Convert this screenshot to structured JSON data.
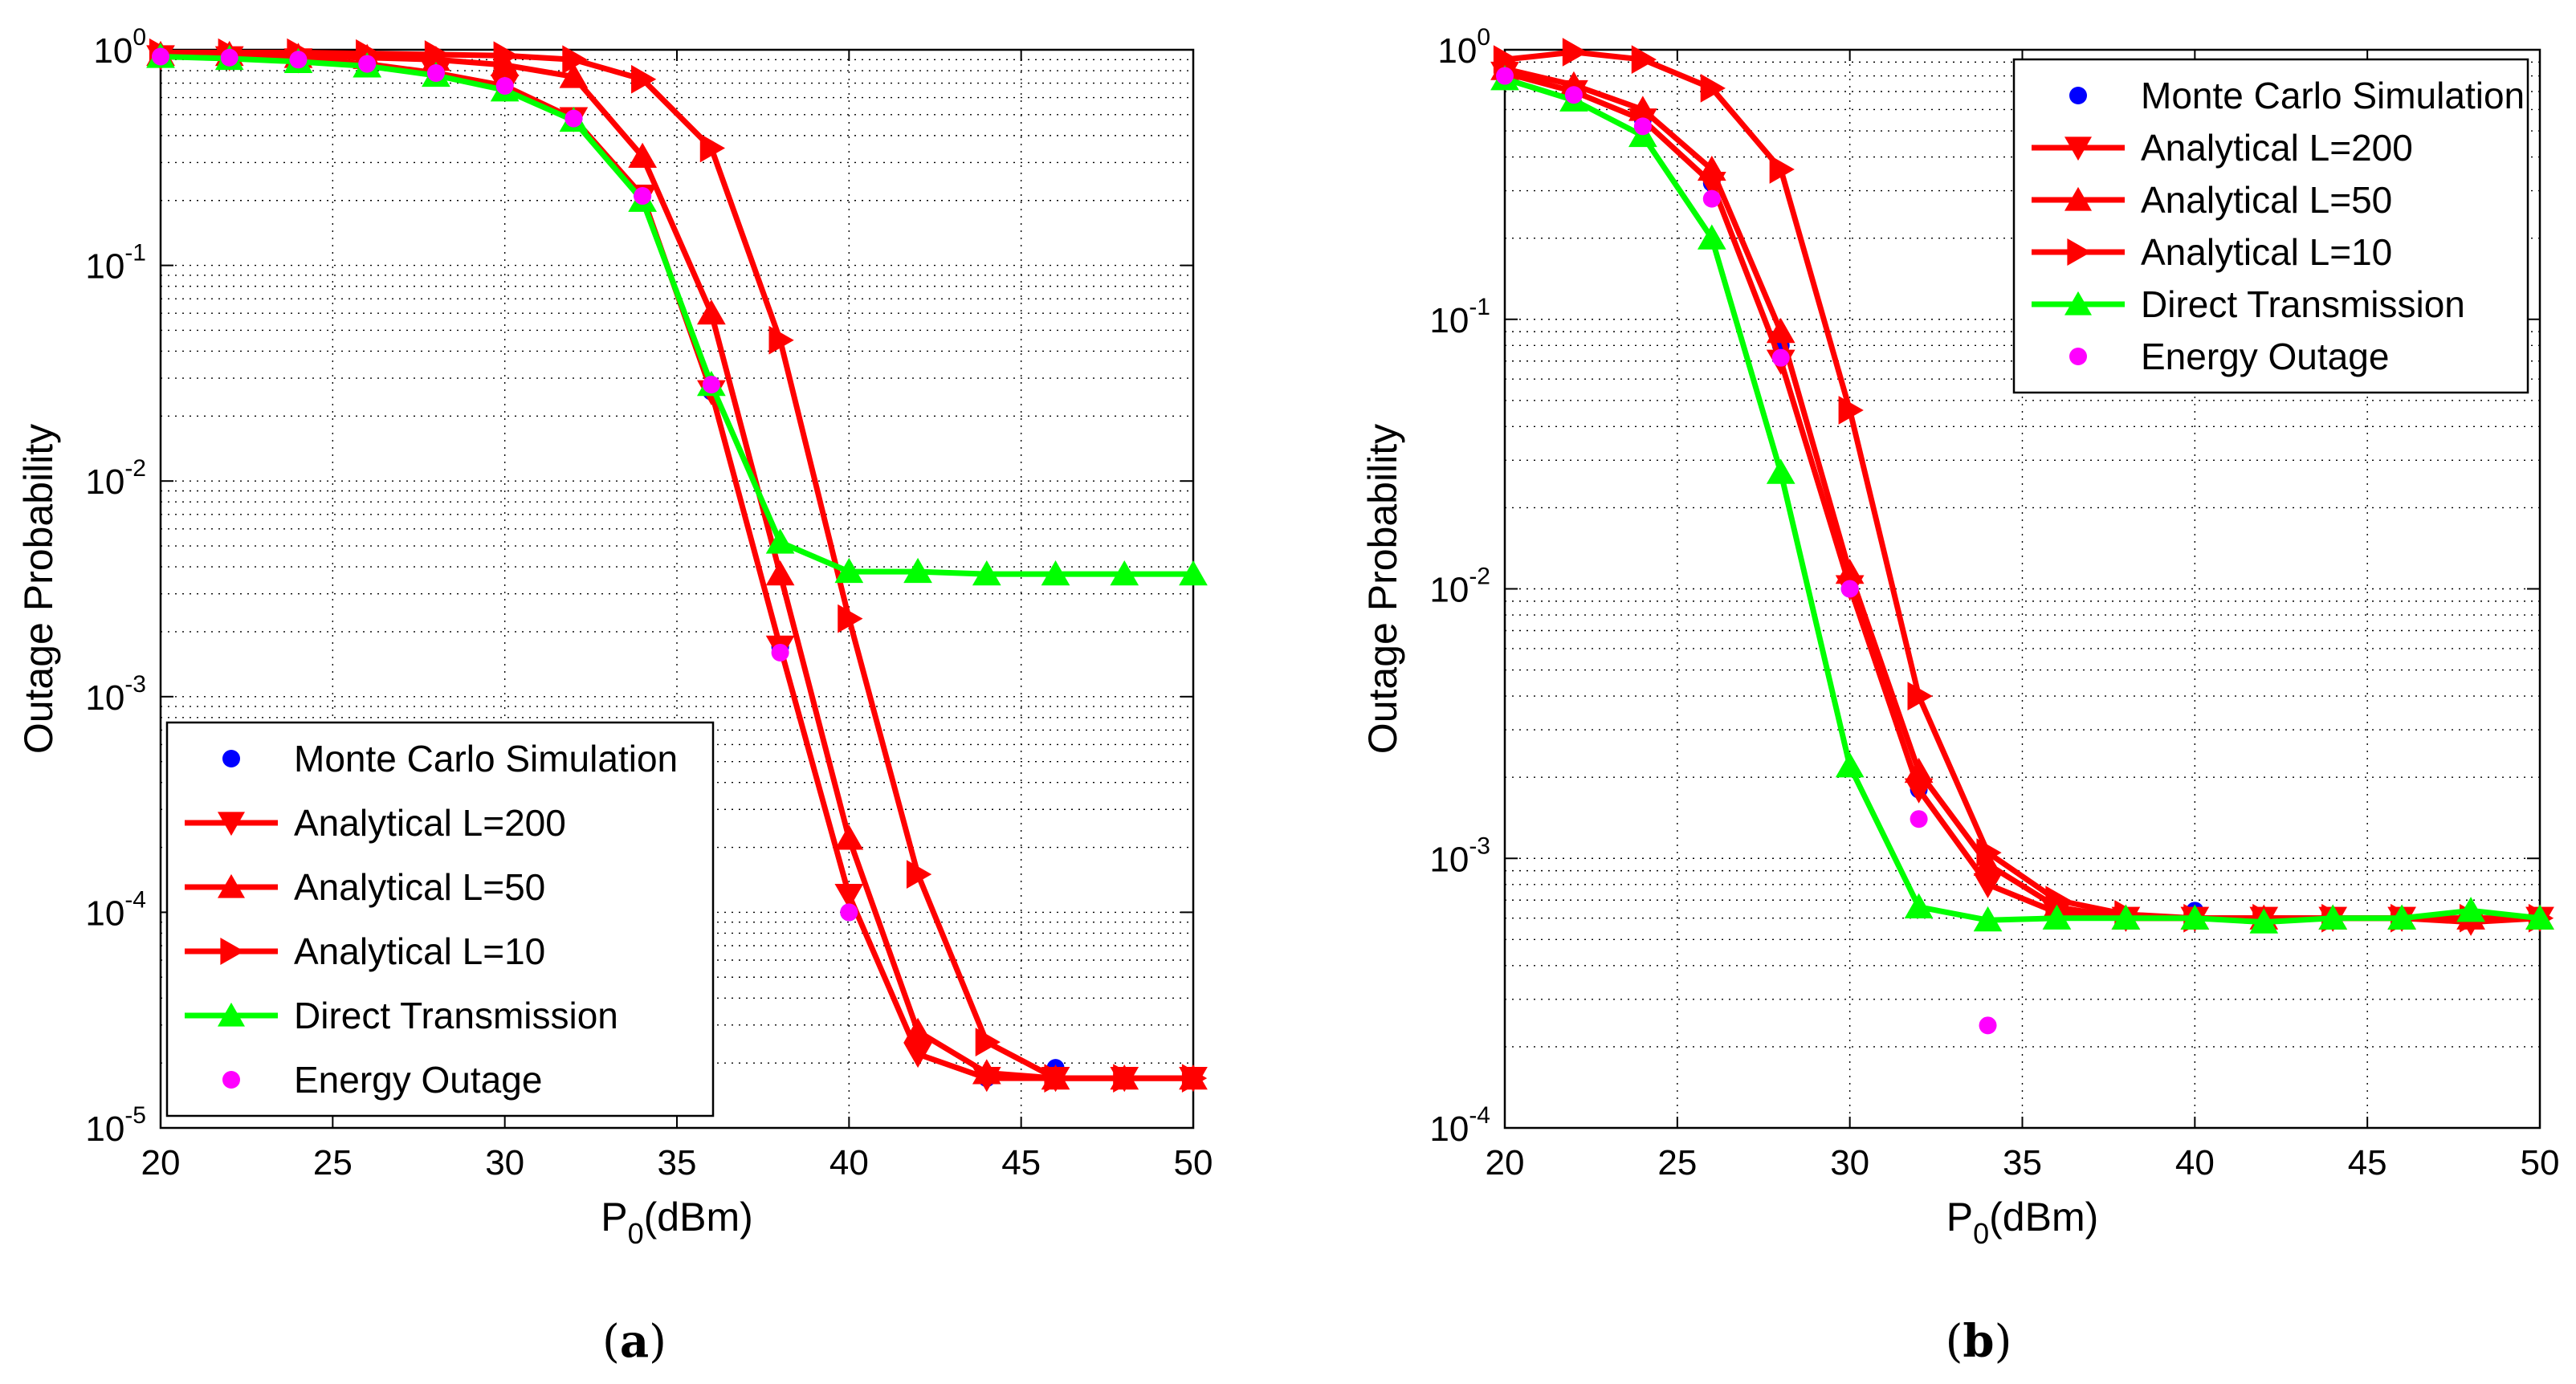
{
  "chart_data": [
    {
      "type": "line",
      "yscale": "log",
      "xlabel": "P0(dBm)",
      "xlabel_main": "P",
      "xlabel_sub": "0",
      "xlabel_unit": "(dBm)",
      "ylabel": "Outage Probability",
      "xlim": [
        20,
        50
      ],
      "ylim": [
        1e-05,
        1
      ],
      "xticks": [
        "20",
        "25",
        "30",
        "35",
        "40",
        "45",
        "50"
      ],
      "yticks": [
        {
          "base": "10",
          "exp": "0"
        },
        {
          "base": "10",
          "exp": "-1"
        },
        {
          "base": "10",
          "exp": "-2"
        },
        {
          "base": "10",
          "exp": "-3"
        },
        {
          "base": "10",
          "exp": "-4"
        },
        {
          "base": "10",
          "exp": "-5"
        }
      ],
      "grid": true,
      "legend_position": "bottom-left",
      "caption_letter": "a",
      "series": [
        {
          "name": "Monte Carlo Simulation",
          "style": "dots",
          "color": "#0000ff",
          "x": [
            20,
            22,
            24,
            26,
            28,
            30,
            32,
            34,
            36,
            38,
            40,
            42,
            44,
            46,
            48,
            50
          ],
          "y": [
            0.93,
            0.92,
            0.9,
            0.86,
            0.78,
            0.68,
            0.48,
            0.21,
            0.026,
            0.0017,
            0.0001,
            2.3e-05,
            1.7e-05,
            1.9e-05,
            1.7e-05,
            1.7e-05
          ]
        },
        {
          "name": "Analytical L=200",
          "style": "line",
          "marker": "triangle-down",
          "color": "#ff0000",
          "x": [
            20,
            22,
            24,
            26,
            28,
            30,
            32,
            34,
            36,
            38,
            40,
            42,
            44,
            46,
            48,
            50
          ],
          "y": [
            0.93,
            0.92,
            0.9,
            0.86,
            0.78,
            0.68,
            0.48,
            0.21,
            0.026,
            0.0017,
            0.00012,
            2.2e-05,
            1.7e-05,
            1.7e-05,
            1.7e-05,
            1.7e-05
          ]
        },
        {
          "name": "Analytical L=50",
          "style": "line",
          "marker": "triangle-up",
          "color": "#ff0000",
          "x": [
            20,
            22,
            24,
            26,
            28,
            30,
            32,
            34,
            36,
            38,
            40,
            42,
            44,
            46,
            48,
            50
          ],
          "y": [
            0.95,
            0.95,
            0.93,
            0.92,
            0.9,
            0.85,
            0.75,
            0.32,
            0.06,
            0.0037,
            0.00022,
            2.8e-05,
            1.8e-05,
            1.7e-05,
            1.7e-05,
            1.7e-05
          ]
        },
        {
          "name": "Analytical L=10",
          "style": "line",
          "marker": "triangle-right",
          "color": "#ff0000",
          "x": [
            20,
            22,
            24,
            26,
            28,
            30,
            32,
            34,
            36,
            38,
            40,
            42,
            44,
            46,
            48,
            50
          ],
          "y": [
            0.97,
            0.97,
            0.97,
            0.96,
            0.95,
            0.94,
            0.9,
            0.73,
            0.35,
            0.045,
            0.0023,
            0.00015,
            2.5e-05,
            1.7e-05,
            1.7e-05,
            1.7e-05
          ]
        },
        {
          "name": "Direct Transmission",
          "style": "line",
          "marker": "triangle-up",
          "color": "#00ff00",
          "x": [
            20,
            22,
            24,
            26,
            28,
            30,
            32,
            34,
            36,
            38,
            40,
            42,
            44,
            46,
            48,
            50
          ],
          "y": [
            0.93,
            0.91,
            0.88,
            0.84,
            0.76,
            0.65,
            0.47,
            0.2,
            0.028,
            0.0052,
            0.0038,
            0.0038,
            0.0037,
            0.0037,
            0.0037,
            0.0037
          ]
        },
        {
          "name": "Energy Outage",
          "style": "dots",
          "color": "#ff00ff",
          "x": [
            20,
            22,
            24,
            26,
            28,
            30,
            32,
            34,
            36,
            38,
            40
          ],
          "y": [
            0.93,
            0.92,
            0.9,
            0.86,
            0.78,
            0.68,
            0.48,
            0.21,
            0.028,
            0.0016,
            0.0001
          ]
        }
      ]
    },
    {
      "type": "line",
      "yscale": "log",
      "xlabel": "P0(dBm)",
      "xlabel_main": "P",
      "xlabel_sub": "0",
      "xlabel_unit": "(dBm)",
      "ylabel": "Outage Probability",
      "xlim": [
        20,
        50
      ],
      "ylim": [
        0.0001,
        1
      ],
      "xticks": [
        "20",
        "25",
        "30",
        "35",
        "40",
        "45",
        "50"
      ],
      "yticks": [
        {
          "base": "10",
          "exp": "0"
        },
        {
          "base": "10",
          "exp": "-1"
        },
        {
          "base": "10",
          "exp": "-2"
        },
        {
          "base": "10",
          "exp": "-3"
        },
        {
          "base": "10",
          "exp": "-4"
        }
      ],
      "grid": true,
      "legend_position": "top-right",
      "caption_letter": "b",
      "series": [
        {
          "name": "Monte Carlo Simulation",
          "style": "dots",
          "color": "#0000ff",
          "x": [
            20,
            22,
            24,
            26,
            28,
            30,
            32,
            34,
            36,
            38,
            40,
            42,
            44,
            46,
            48,
            50
          ],
          "y": [
            0.82,
            0.7,
            0.55,
            0.32,
            0.08,
            0.01,
            0.0018,
            0.00085,
            0.00062,
            0.0006,
            0.00064,
            0.00059,
            0.0006,
            0.0006,
            0.0006,
            0.0006
          ]
        },
        {
          "name": "Analytical L=200",
          "style": "line",
          "marker": "triangle-down",
          "color": "#ff0000",
          "x": [
            20,
            22,
            24,
            26,
            28,
            30,
            32,
            34,
            36,
            38,
            40,
            42,
            44,
            46,
            48,
            50
          ],
          "y": [
            0.82,
            0.7,
            0.55,
            0.32,
            0.07,
            0.0102,
            0.0018,
            0.0008,
            0.00063,
            0.0006,
            0.0006,
            0.0006,
            0.0006,
            0.0006,
            0.00058,
            0.0006
          ]
        },
        {
          "name": "Analytical L=50",
          "style": "line",
          "marker": "triangle-up",
          "color": "#ff0000",
          "x": [
            20,
            22,
            24,
            26,
            28,
            30,
            32,
            34,
            36,
            38,
            40,
            42,
            44,
            46,
            48,
            50
          ],
          "y": [
            0.85,
            0.74,
            0.6,
            0.36,
            0.09,
            0.0115,
            0.0021,
            0.00095,
            0.00066,
            0.0006,
            0.0006,
            0.0006,
            0.0006,
            0.0006,
            0.0006,
            0.0006
          ]
        },
        {
          "name": "Analytical L=10",
          "style": "line",
          "marker": "triangle-right",
          "color": "#ff0000",
          "x": [
            20,
            22,
            24,
            26,
            28,
            30,
            32,
            34,
            36,
            38,
            40,
            42,
            44,
            46,
            48,
            50
          ],
          "y": [
            0.92,
            0.98,
            0.92,
            0.72,
            0.36,
            0.046,
            0.004,
            0.00105,
            0.0007,
            0.00062,
            0.0006,
            0.0006,
            0.0006,
            0.0006,
            0.0006,
            0.0006
          ]
        },
        {
          "name": "Direct Transmission",
          "style": "line",
          "marker": "triangle-up",
          "color": "#00ff00",
          "x": [
            20,
            22,
            24,
            26,
            28,
            30,
            32,
            34,
            36,
            38,
            40,
            42,
            44,
            46,
            48,
            50
          ],
          "y": [
            0.78,
            0.65,
            0.48,
            0.2,
            0.027,
            0.0022,
            0.00066,
            0.00059,
            0.0006,
            0.0006,
            0.0006,
            0.00058,
            0.0006,
            0.0006,
            0.00064,
            0.0006
          ]
        },
        {
          "name": "Energy Outage",
          "style": "dots",
          "color": "#ff00ff",
          "x": [
            20,
            22,
            24,
            26,
            28,
            30,
            32,
            34
          ],
          "y": [
            0.8,
            0.68,
            0.52,
            0.28,
            0.072,
            0.01,
            0.0014,
            0.00024
          ]
        }
      ]
    }
  ]
}
